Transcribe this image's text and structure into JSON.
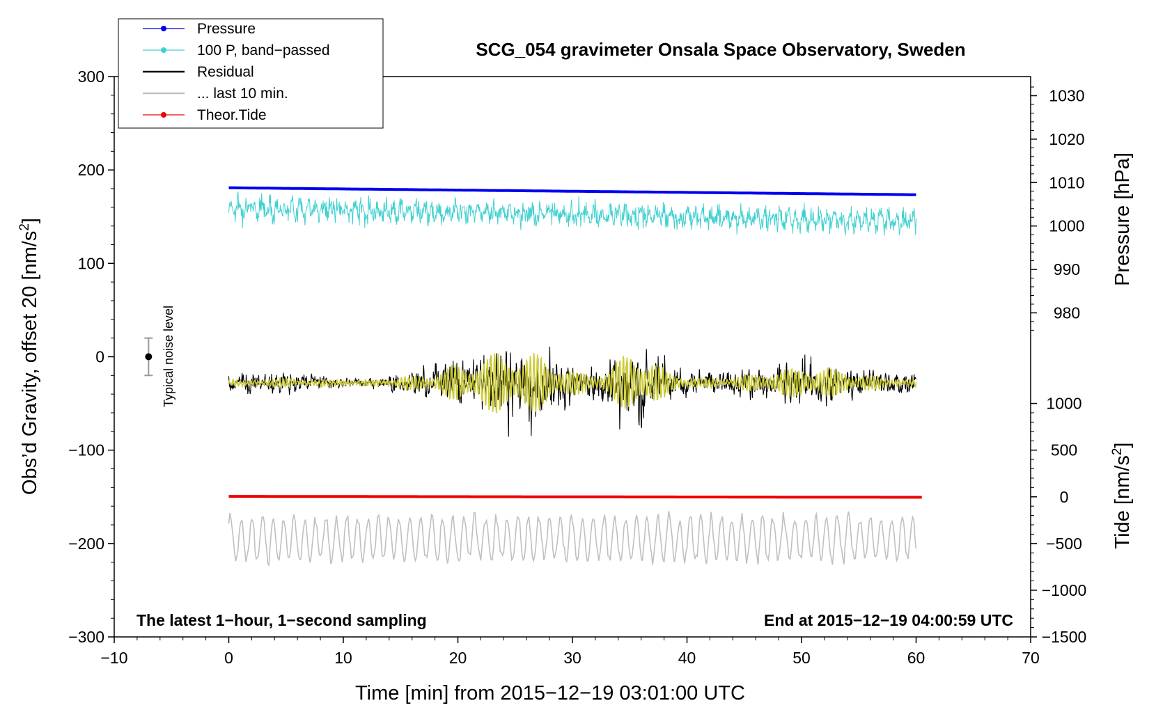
{
  "chart_data": {
    "type": "line",
    "title": "SCG_054 gravimeter Onsala Space Observatory, Sweden",
    "xlabel": "Time [min] from 2015−12−19 03:01:00 UTC",
    "ylabel_left": "Obs’d Gravity, offset 20 [nm/s",
    "ylabel_left_sup": "2",
    "ylabel_left_end": "]",
    "ylabel_right_pressure": "Pressure [hPa]",
    "ylabel_right_tide": "Tide [nm/s",
    "ylabel_right_tide_sup": "2",
    "ylabel_right_tide_end": "]",
    "xlim": [
      -10,
      70
    ],
    "ylim": [
      -300,
      300
    ],
    "x_ticks": [
      {
        "value": -10,
        "label": "−10"
      },
      {
        "value": 0,
        "label": "0"
      },
      {
        "value": 10,
        "label": "10"
      },
      {
        "value": 20,
        "label": "20"
      },
      {
        "value": 30,
        "label": "30"
      },
      {
        "value": 40,
        "label": "40"
      },
      {
        "value": 50,
        "label": "50"
      },
      {
        "value": 60,
        "label": "60"
      },
      {
        "value": 70,
        "label": "70"
      }
    ],
    "y_ticks": [
      {
        "value": 300,
        "label": "300"
      },
      {
        "value": 200,
        "label": "200"
      },
      {
        "value": 100,
        "label": "100"
      },
      {
        "value": 0,
        "label": "0"
      },
      {
        "value": -100,
        "label": "−100"
      },
      {
        "value": -200,
        "label": "−200"
      },
      {
        "value": -300,
        "label": "−300"
      }
    ],
    "pressure_axis": {
      "ticks": [
        {
          "value": 1030,
          "label": "1030"
        },
        {
          "value": 1020,
          "label": "1020"
        },
        {
          "value": 1010,
          "label": "1010"
        },
        {
          "value": 1000,
          "label": "1000"
        },
        {
          "value": 990,
          "label": "990"
        },
        {
          "value": 980,
          "label": "980"
        }
      ],
      "maps": [
        [
          1000,
          140
        ],
        [
          1010,
          186.5
        ]
      ]
    },
    "tide_axis": {
      "ticks": [
        {
          "value": 1000,
          "label": "1000"
        },
        {
          "value": 500,
          "label": "500"
        },
        {
          "value": 0,
          "label": "0"
        },
        {
          "value": -500,
          "label": "−500"
        },
        {
          "value": -1000,
          "label": "−1000"
        },
        {
          "value": -1500,
          "label": "−1500"
        }
      ],
      "maps": [
        [
          0,
          -150
        ],
        [
          1000,
          -50
        ]
      ]
    },
    "series": [
      {
        "name": "Pressure",
        "color": "#0000ee",
        "style": "line-dot",
        "start": 1008.8,
        "end": 1007.2
      },
      {
        "name": "100 P, band−passed",
        "color": "#40d0d0",
        "style": "line-dot",
        "center_start": 160,
        "center_end": 145
      },
      {
        "name": "Residual",
        "color": "#000000",
        "style": "line",
        "center": -28
      },
      {
        "name": "... last 10 min.",
        "color": "#c0c0c0",
        "style": "line",
        "center": -195
      },
      {
        "name": "Theor.Tide",
        "color": "#ee0000",
        "style": "line-dot",
        "start": 5,
        "end": -5
      }
    ],
    "filtered_series": {
      "name": "filtered residual",
      "color": "#cccc33",
      "center": -28
    },
    "time_range": [
      0,
      60
    ],
    "noise_level": {
      "label": "Typical noise level",
      "x": -7,
      "center": 0,
      "half_range": 20
    },
    "annotation_left": "The latest 1−hour, 1−second sampling",
    "annotation_right": "End at 2015−12−19 04:00:59 UTC"
  }
}
